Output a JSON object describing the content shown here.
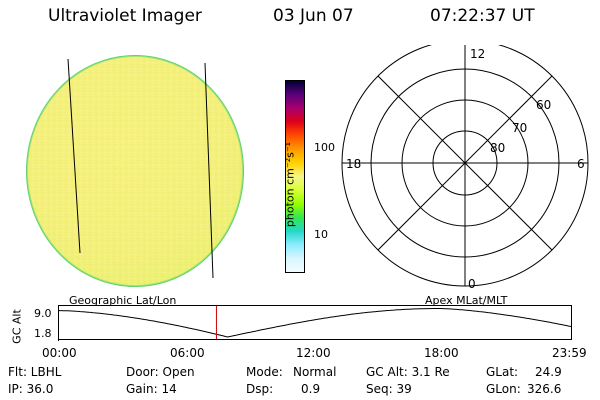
{
  "header": {
    "title": "Ultraviolet Imager",
    "date": "03 Jun 07",
    "time": "07:22:37 UT"
  },
  "colorbar": {
    "unit_label": "photon cm⁻²s⁻¹",
    "ticks": [
      "100",
      "10"
    ],
    "scale": "log",
    "colors": [
      "#000033",
      "#5a007a",
      "#a8006e",
      "#e0001a",
      "#ff4c00",
      "#ff9900",
      "#ffd200",
      "#f5f58a",
      "#d8ff3a",
      "#96ff00",
      "#36e650",
      "#24d8c8",
      "#8cecff",
      "#d8f6ff",
      "#f2fbff"
    ]
  },
  "polar_plot": {
    "hour_labels": [
      "12",
      "18",
      "6",
      "0"
    ],
    "lat_labels": [
      "60",
      "70",
      "80"
    ]
  },
  "timeline": {
    "left_label": "Geographic Lat/Lon",
    "right_label": "Apex MLat/MLT",
    "ylabel": "GC Alt",
    "y_ticks": [
      "9.0",
      "1.8"
    ],
    "x_ticks": [
      "00:00",
      "06:00",
      "12:00",
      "18:00",
      "23:59"
    ],
    "current_time_marker_hours": 7.38,
    "current_time_marker_color": "#cc0000",
    "altitude_curve_color": "#000000"
  },
  "info": {
    "filter": "Flt: LBHL",
    "ip": "IP: 36.0",
    "door": "Door: Open",
    "gain": "Gain: 14",
    "mode_label": "Mode:",
    "mode_value": "Normal",
    "dsp_label": "Dsp:",
    "dsp_value": "0.9",
    "gc_alt": "GC Alt: 3.1 Re",
    "seq": "Seq: 39",
    "glat_label": "GLat:",
    "glat_value": "24.9",
    "glon_label": "GLon:",
    "glon_value": "326.6"
  },
  "image_colors": {
    "disk_fill": "#f7f28a",
    "disk_edge": "#5ed36e"
  }
}
